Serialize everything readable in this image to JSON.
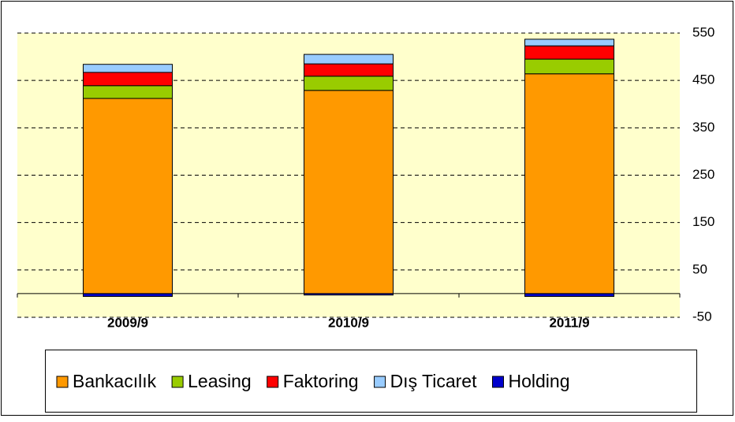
{
  "chart_data": {
    "type": "stacked_bar",
    "categories": [
      "2009/9",
      "2010/9",
      "2011/9"
    ],
    "series": [
      {
        "name": "Bankacılık",
        "color": "#ff9900",
        "values": [
          412,
          429,
          464
        ]
      },
      {
        "name": "Leasing",
        "color": "#99cc00",
        "values": [
          27,
          30,
          31
        ]
      },
      {
        "name": "Faktoring",
        "color": "#ff0000",
        "values": [
          28,
          26,
          28
        ]
      },
      {
        "name": "Dış Ticaret",
        "color": "#99ccff",
        "values": [
          17,
          20,
          14
        ]
      },
      {
        "name": "Holding",
        "color": "#0000cc",
        "values": [
          -6,
          -3,
          -6
        ]
      }
    ],
    "ylim": [
      -50,
      550
    ],
    "yticks": [
      -50,
      50,
      150,
      250,
      350,
      450,
      550
    ],
    "grid": true,
    "legend": "bottom"
  }
}
